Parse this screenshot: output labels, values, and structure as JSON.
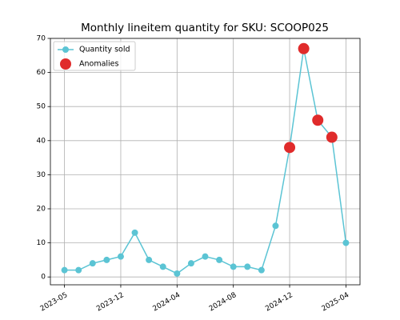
{
  "chart_data": {
    "type": "line",
    "title": "Monthly lineitem quantity for SKU: SCOOP025",
    "categories": [
      "2023-05",
      null,
      null,
      null,
      "2023-12",
      null,
      null,
      null,
      "2024-04",
      null,
      null,
      null,
      "2024-08",
      null,
      null,
      null,
      "2024-12",
      null,
      null,
      null,
      "2025-04"
    ],
    "series": [
      {
        "name": "Quantity sold",
        "color": "#5bc4d4",
        "values": [
          2,
          2,
          4,
          5,
          6,
          13,
          5,
          3,
          1,
          4,
          6,
          5,
          3,
          3,
          2,
          15,
          38,
          67,
          46,
          41,
          10
        ]
      },
      {
        "name": "Anomalies",
        "color": "#e02b2b",
        "type": "scatter",
        "values": [
          null,
          null,
          null,
          null,
          null,
          null,
          null,
          null,
          null,
          null,
          null,
          null,
          null,
          null,
          null,
          null,
          38,
          67,
          46,
          41,
          null
        ]
      }
    ],
    "ylim": [
      -2.3,
      70
    ],
    "yticks": [
      0,
      10,
      20,
      30,
      40,
      50,
      60,
      70
    ],
    "grid": true,
    "legend": "upper left"
  }
}
